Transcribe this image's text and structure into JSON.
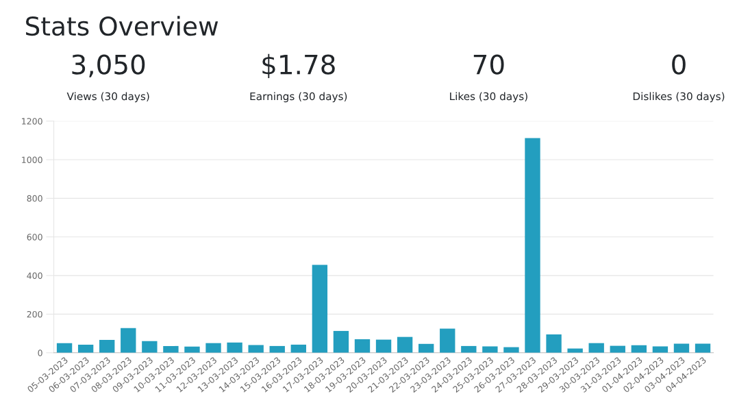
{
  "chart_data": [
    {
      "type": "other",
      "title": "Stats Overview",
      "annotations": [
        "3,050",
        "Views (30 days)",
        "$1.78",
        "Earnings (30 days)",
        "70",
        "Likes (30 days)",
        "0",
        "Dislikes (30 days)"
      ]
    },
    {
      "type": "bar",
      "categories": [
        "05-03-2023",
        "06-03-2023",
        "07-03-2023",
        "08-03-2023",
        "09-03-2023",
        "10-03-2023",
        "11-03-2023",
        "12-03-2023",
        "13-03-2023",
        "14-03-2023",
        "15-03-2023",
        "16-03-2023",
        "17-03-2023",
        "18-03-2023",
        "19-03-2023",
        "20-03-2023",
        "21-03-2023",
        "22-03-2023",
        "23-03-2023",
        "24-03-2023",
        "25-03-2023",
        "26-03-2023",
        "27-03-2023",
        "28-03-2023",
        "29-03-2023",
        "30-03-2023",
        "31-03-2023",
        "01-04-2023",
        "02-04-2023",
        "03-04-2023",
        "04-04-2023"
      ],
      "values": [
        50,
        42,
        67,
        128,
        60,
        35,
        32,
        50,
        53,
        40,
        35,
        42,
        455,
        113,
        70,
        68,
        82,
        46,
        125,
        35,
        33,
        29,
        1112,
        95,
        22,
        50,
        36,
        39,
        33,
        47,
        47
      ],
      "color": "#239ebf",
      "ylim": [
        0,
        1200
      ],
      "yticks": [
        0,
        200,
        400,
        600,
        800,
        1000,
        1200
      ],
      "grid": "y"
    }
  ]
}
